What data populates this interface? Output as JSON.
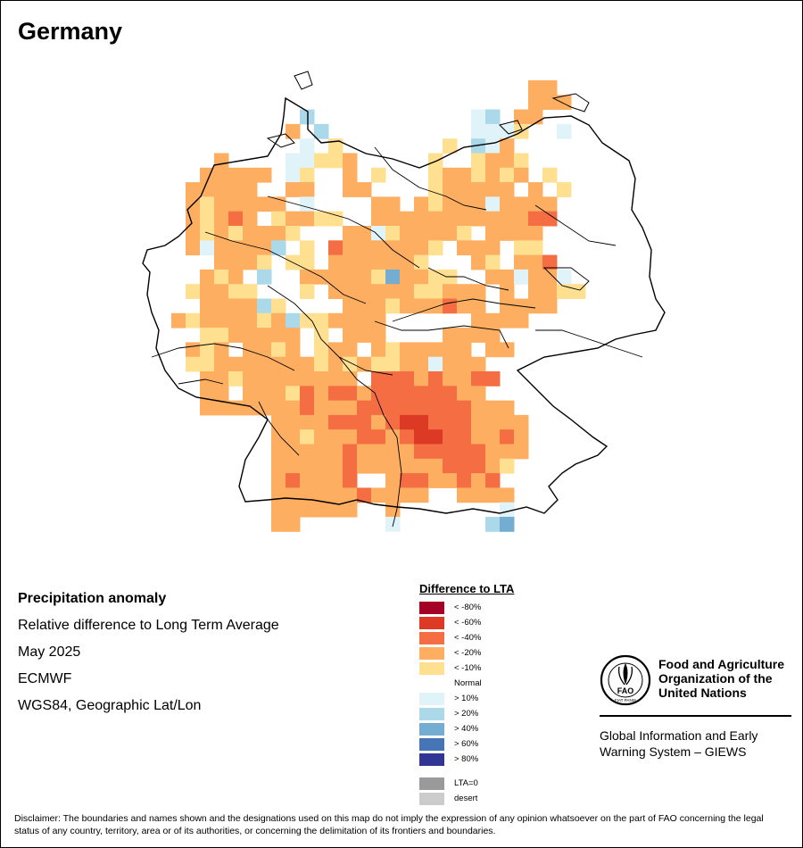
{
  "title": "Germany",
  "info": {
    "heading": "Precipitation anomaly",
    "subtitle": "Relative difference to Long Term Average",
    "period": "May 2025",
    "source": "ECMWF",
    "projection": "WGS84, Geographic Lat/Lon"
  },
  "legend": {
    "title": "Difference to LTA",
    "items": [
      {
        "label": "< -80%",
        "color": "#a50026"
      },
      {
        "label": "< -60%",
        "color": "#dc3a24"
      },
      {
        "label": "< -40%",
        "color": "#f46d43"
      },
      {
        "label": "< -20%",
        "color": "#fdae61"
      },
      {
        "label": "< -10%",
        "color": "#fee090"
      },
      {
        "label": "Normal",
        "color": "#ffffff"
      },
      {
        "label": "> 10%",
        "color": "#e0f3f8"
      },
      {
        "label": "> 20%",
        "color": "#abd9e9"
      },
      {
        "label": "> 40%",
        "color": "#74add1"
      },
      {
        "label": "> 60%",
        "color": "#4575b4"
      },
      {
        "label": "> 80%",
        "color": "#313695"
      }
    ],
    "extra": [
      {
        "label": "LTA=0",
        "color": "#9a9a9a"
      },
      {
        "label": "desert",
        "color": "#cccccc"
      }
    ]
  },
  "logo": {
    "org_line1": "Food and Agriculture",
    "org_line2": "Organization of the",
    "org_line3": "United Nations",
    "giews_line1": "Global Information and Early",
    "giews_line2": "Warning System – GIEWS",
    "emblem_text": "FAO",
    "emblem_motto": "FIAT PANIS"
  },
  "disclaimer": "Disclaimer: The boundaries and names shown and the designations used on this map do not imply the expression of any opinion whatsoever on the part of FAO concerning the legal status of any country, territory, area or of its authorities, or concerning the delimitation of its frontiers and boundaries.",
  "map_data": {
    "grid_cols": 36,
    "grid_rows": 31,
    "code_legend": "0=<-80%,1=<-60%,2=<-40%,3=<-20%,4=<-10%,5=Normal,6=>10%,7=>20%,8=>40%,9=>60%,A=>80%,.=outside",
    "rows": [
      "...........................33.......",
      ".........................55333......",
      "...........7...........675335.......",
      "..........3.7..........6664.56......",
      "...........6.4.......4.7635.........",
      ".....3....66443.....4.54334.........",
      "....33333.64553.4...4334343.4.......",
      "...33333.5335533....43333353.4......",
      "...3433333.6555533.3433363333.......",
      "...34323543344553333333333322.......",
      "...34343334555336433334.33335.......",
      "...3633337545233333345333.44........",
      ".....33345445333333455534.332.......",
      "....34357553333348334455336336......",
      "...4334455545333333443335353344.....",
      "....3333745555333433323353333.......",
      "..3433334374433335555553333.........",
      "...54433333545333555533335..........",
      "...34353343543353433333533..........",
      "...4433333334343443363335...........",
      "....334333333335222323322...........",
      "....335333423223222222335...........",
      "....3333333233322222222333..........",
      "........5333322232112223333.........",
      ".........334333223211223323.........",
      ".........3333323333222223335........",
      "........533333233333322234..........",
      "........53233325532233232...........",
      ".........33333323333553333..........",
      "........5333333553.5555556..........",
      ".........33.....56...55.78.........."
    ]
  }
}
